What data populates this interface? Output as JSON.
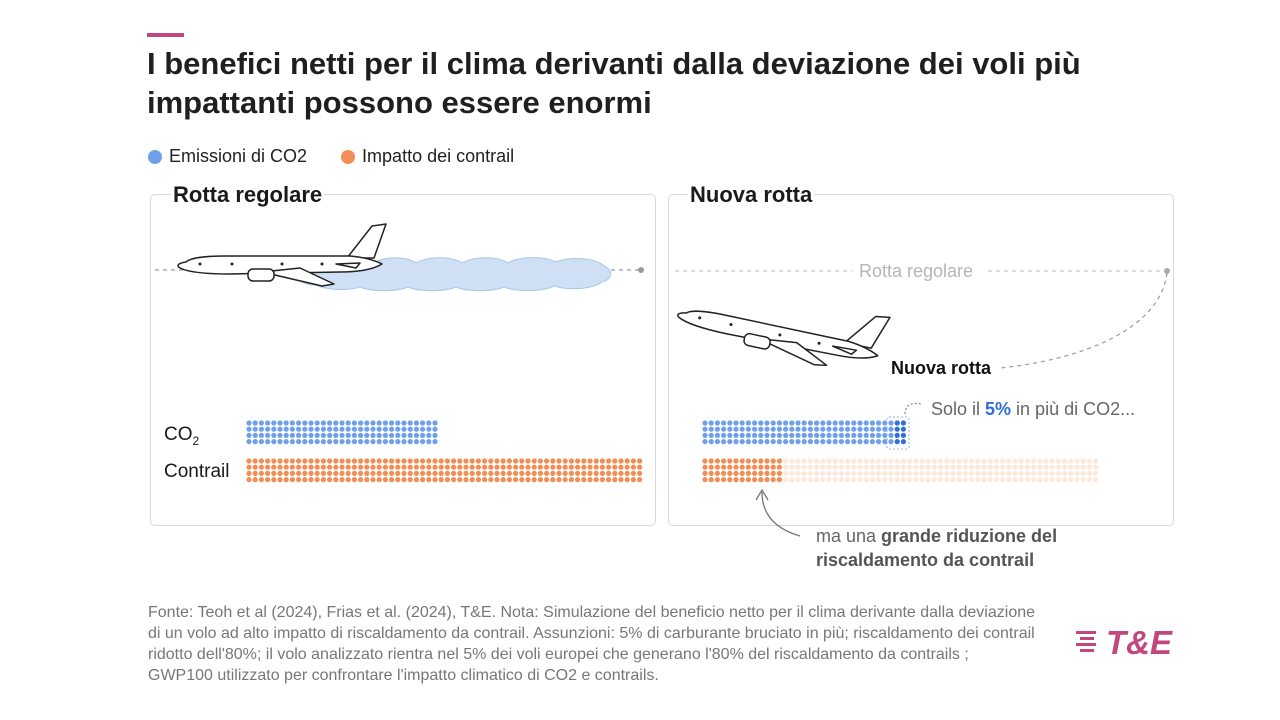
{
  "title": "I benefici netti per il clima derivanti dalla deviazione dei voli più impattanti possono essere enormi",
  "legend": [
    {
      "label": "Emissioni di CO2",
      "color": "#6fa0ea"
    },
    {
      "label": "Impatto dei contrail",
      "color": "#f28e55"
    }
  ],
  "panels": {
    "regular": {
      "title": "Rotta regolare",
      "co2_label": "CO",
      "co2_sub": "2",
      "contrail_label": "Contrail"
    },
    "new": {
      "title": "Nuova rotta",
      "route_regular_label": "Rotta regolare",
      "route_new_label": "Nuova rotta"
    }
  },
  "annotations": {
    "co2_prefix": "Solo il ",
    "co2_pct": "5%",
    "co2_suffix": " in più di CO2...",
    "contrail_prefix": "ma una ",
    "contrail_bold": "grande riduzione del riscaldamento da contrail"
  },
  "chart_data": {
    "type": "dot-matrix",
    "categories": [
      "Rotta regolare",
      "Nuova rotta"
    ],
    "series": [
      {
        "name": "Emissioni di CO2",
        "values": [
          100,
          105
        ]
      },
      {
        "name": "Impatto dei contrail",
        "values": [
          100,
          20
        ]
      }
    ],
    "notes": "Nuova rotta: +5% CO2, -80% riscaldamento da contrail"
  },
  "footer": "Fonte: Teoh et al (2024), Frias et al. (2024), T&E. Nota: Simulazione del beneficio netto per il clima derivante dalla deviazione di un volo ad alto impatto di riscaldamento da contrail. Assunzioni: 5% di carburante bruciato in più; riscaldamento dei contrail ridotto dell'80%; il volo analizzato rientra nel 5% dei voli europei che generano l'80% del riscaldamento da contrails ; GWP100 utilizzato per confrontare l'impatto climatico di CO2 e contrails.",
  "logo": "T&E",
  "colors": {
    "co2": "#6fa0ea",
    "co2_extra": "#2f6fd6",
    "contrail": "#f28e55",
    "contrail_faded": "#fde9dc",
    "accent": "#c2477e"
  }
}
